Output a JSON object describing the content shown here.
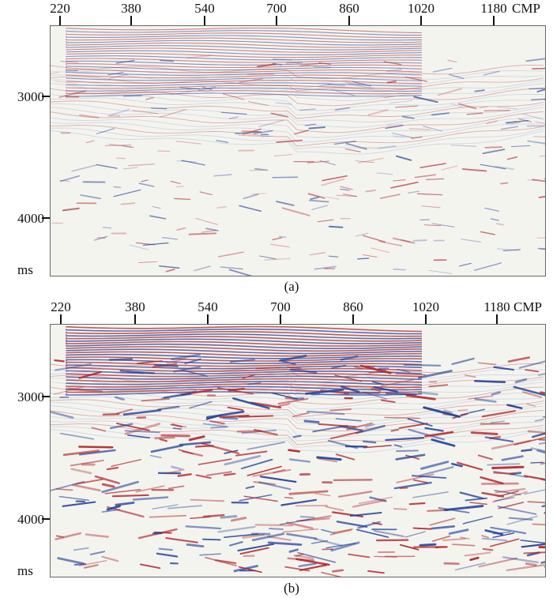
{
  "panels": [
    {
      "id": "a",
      "cmp_ticks": [
        "220",
        "380",
        "540",
        "700",
        "860",
        "1020",
        "1180"
      ],
      "cmp_unit": "CMP",
      "time_ticks": [
        "3000",
        "4000"
      ],
      "time_unit": "ms",
      "caption": "(a)"
    },
    {
      "id": "b",
      "cmp_ticks": [
        "220",
        "380",
        "540",
        "700",
        "860",
        "1020",
        "1180"
      ],
      "cmp_unit": "CMP",
      "time_ticks": [
        "3000",
        "4000"
      ],
      "time_unit": "ms",
      "caption": "(b)"
    }
  ],
  "colors": {
    "positive": "#b3262b",
    "negative": "#24429a",
    "background": "#f4f4ef"
  }
}
